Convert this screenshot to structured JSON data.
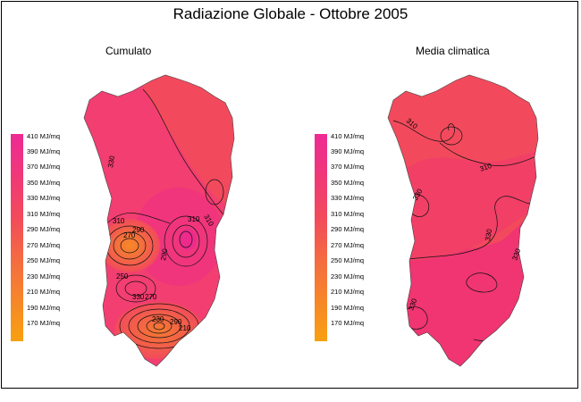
{
  "title": "Radiazione Globale - Ottobre 2005",
  "panels": [
    {
      "subtitle": "Cumulato",
      "contour_labels": [
        "330",
        "310",
        "310",
        "310",
        "290",
        "270",
        "250",
        "290",
        "330",
        "270",
        "230",
        "290",
        "210"
      ]
    },
    {
      "subtitle": "Media climatica",
      "contour_labels": [
        "310",
        "310",
        "330",
        "330",
        "330",
        "330"
      ]
    }
  ],
  "legend": {
    "unit": "MJ/mq",
    "items": [
      "410 MJ/mq",
      "390 MJ/mq",
      "370 MJ/mq",
      "350 MJ/mq",
      "330 MJ/mq",
      "310 MJ/mq",
      "290 MJ/mq",
      "270 MJ/mq",
      "250 MJ/mq",
      "230 MJ/mq",
      "210 MJ/mq",
      "190 MJ/mq",
      "170 MJ/mq"
    ]
  },
  "colors": {
    "high": "#ee2a94",
    "mid": "#f24a5c",
    "low": "#f8a010",
    "land_fill": "#f24a5c"
  }
}
